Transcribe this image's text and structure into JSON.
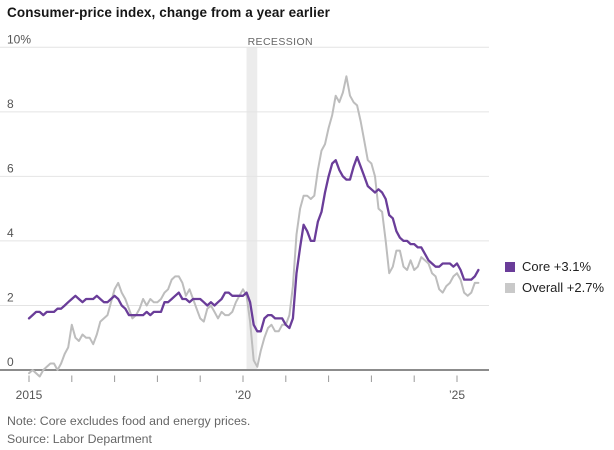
{
  "title": "Consumer-price index, change from a year earlier",
  "note": "Note: Core excludes food and energy prices.",
  "source": "Source: Labor Department",
  "legend": {
    "items": [
      {
        "id": "core",
        "label": "Core +3.1%",
        "swatch_color": "#6a3d99"
      },
      {
        "id": "overall",
        "label": "Overall +2.7%",
        "swatch_color": "#c9c9c9"
      }
    ]
  },
  "colors": {
    "core_line": "#6a3d99",
    "overall_line": "#bdbdbd",
    "gridline": "#e4e4e4",
    "zero_axis": "#8c8c8c",
    "tick": "#999999",
    "axis_label": "#555555",
    "recession_band": "#ececec",
    "recession_label": "#666666"
  },
  "chart_data": {
    "type": "line",
    "title": "Consumer-price index, change from a year earlier",
    "xlabel": "",
    "ylabel": "",
    "unit": "%",
    "frequency": "monthly",
    "x_range": [
      "2015-01",
      "2025-07"
    ],
    "ylim": [
      -0.5,
      10
    ],
    "grid": "horizontal",
    "legend_position": "right",
    "y_ticks": [
      {
        "value": 10,
        "label": "10%"
      },
      {
        "value": 8,
        "label": "8"
      },
      {
        "value": 6,
        "label": "6"
      },
      {
        "value": 4,
        "label": "4"
      },
      {
        "value": 2,
        "label": "2"
      },
      {
        "value": 0,
        "label": "0"
      }
    ],
    "x_ticks": [
      {
        "year": 2015,
        "label": "2015"
      },
      {
        "year": 2016,
        "label": ""
      },
      {
        "year": 2017,
        "label": ""
      },
      {
        "year": 2018,
        "label": ""
      },
      {
        "year": 2019,
        "label": ""
      },
      {
        "year": 2020,
        "label": "’20"
      },
      {
        "year": 2021,
        "label": ""
      },
      {
        "year": 2022,
        "label": ""
      },
      {
        "year": 2023,
        "label": ""
      },
      {
        "year": 2024,
        "label": ""
      },
      {
        "year": 2025,
        "label": "’25"
      }
    ],
    "annotations": [
      {
        "type": "recession-band",
        "text": "RECESSION",
        "start": "2020-02",
        "end": "2020-04"
      }
    ],
    "series": [
      {
        "name": "Overall",
        "latest_label": "Overall +2.7%",
        "color": "#bdbdbd",
        "start": "2015-01",
        "values": [
          -0.1,
          0.0,
          -0.1,
          -0.2,
          0.0,
          0.1,
          0.2,
          0.2,
          0.0,
          0.2,
          0.5,
          0.7,
          1.4,
          1.0,
          0.9,
          1.1,
          1.0,
          1.0,
          0.8,
          1.1,
          1.5,
          1.6,
          1.7,
          2.1,
          2.5,
          2.7,
          2.4,
          2.2,
          1.9,
          1.6,
          1.7,
          1.9,
          2.2,
          2.0,
          2.2,
          2.1,
          2.1,
          2.2,
          2.4,
          2.5,
          2.8,
          2.9,
          2.9,
          2.7,
          2.3,
          2.5,
          2.2,
          1.9,
          1.6,
          1.5,
          1.9,
          2.0,
          1.8,
          1.6,
          1.8,
          1.7,
          1.7,
          1.8,
          2.1,
          2.3,
          2.5,
          2.3,
          1.5,
          0.3,
          0.1,
          0.6,
          1.0,
          1.3,
          1.4,
          1.2,
          1.2,
          1.4,
          1.4,
          1.7,
          2.6,
          4.2,
          5.0,
          5.4,
          5.4,
          5.3,
          5.4,
          6.2,
          6.8,
          7.0,
          7.5,
          7.9,
          8.5,
          8.3,
          8.6,
          9.1,
          8.5,
          8.3,
          8.2,
          7.7,
          7.1,
          6.5,
          6.4,
          6.0,
          5.0,
          4.9,
          4.0,
          3.0,
          3.2,
          3.7,
          3.7,
          3.2,
          3.1,
          3.4,
          3.1,
          3.2,
          3.5,
          3.4,
          3.3,
          3.0,
          2.9,
          2.5,
          2.4,
          2.6,
          2.7,
          2.9,
          3.0,
          2.8,
          2.4,
          2.3,
          2.4,
          2.7,
          2.7
        ]
      },
      {
        "name": "Core",
        "latest_label": "Core +3.1%",
        "color": "#6a3d99",
        "start": "2015-01",
        "values": [
          1.6,
          1.7,
          1.8,
          1.8,
          1.7,
          1.8,
          1.8,
          1.8,
          1.9,
          1.9,
          2.0,
          2.1,
          2.2,
          2.3,
          2.2,
          2.1,
          2.2,
          2.2,
          2.2,
          2.3,
          2.2,
          2.1,
          2.1,
          2.2,
          2.3,
          2.2,
          2.0,
          1.9,
          1.7,
          1.7,
          1.7,
          1.7,
          1.7,
          1.8,
          1.7,
          1.8,
          1.8,
          1.8,
          2.1,
          2.1,
          2.2,
          2.3,
          2.4,
          2.2,
          2.2,
          2.1,
          2.2,
          2.2,
          2.2,
          2.1,
          2.0,
          2.1,
          2.0,
          2.1,
          2.2,
          2.4,
          2.4,
          2.3,
          2.3,
          2.3,
          2.3,
          2.4,
          2.1,
          1.4,
          1.2,
          1.2,
          1.6,
          1.7,
          1.7,
          1.6,
          1.6,
          1.6,
          1.4,
          1.3,
          1.6,
          3.0,
          3.8,
          4.5,
          4.3,
          4.0,
          4.0,
          4.6,
          4.9,
          5.5,
          6.0,
          6.4,
          6.5,
          6.2,
          6.0,
          5.9,
          5.9,
          6.3,
          6.6,
          6.3,
          6.0,
          5.7,
          5.6,
          5.5,
          5.6,
          5.5,
          5.3,
          4.8,
          4.7,
          4.3,
          4.1,
          4.0,
          4.0,
          3.9,
          3.9,
          3.8,
          3.8,
          3.6,
          3.4,
          3.3,
          3.2,
          3.2,
          3.3,
          3.3,
          3.3,
          3.2,
          3.3,
          3.1,
          2.8,
          2.8,
          2.8,
          2.9,
          3.1
        ]
      }
    ]
  }
}
